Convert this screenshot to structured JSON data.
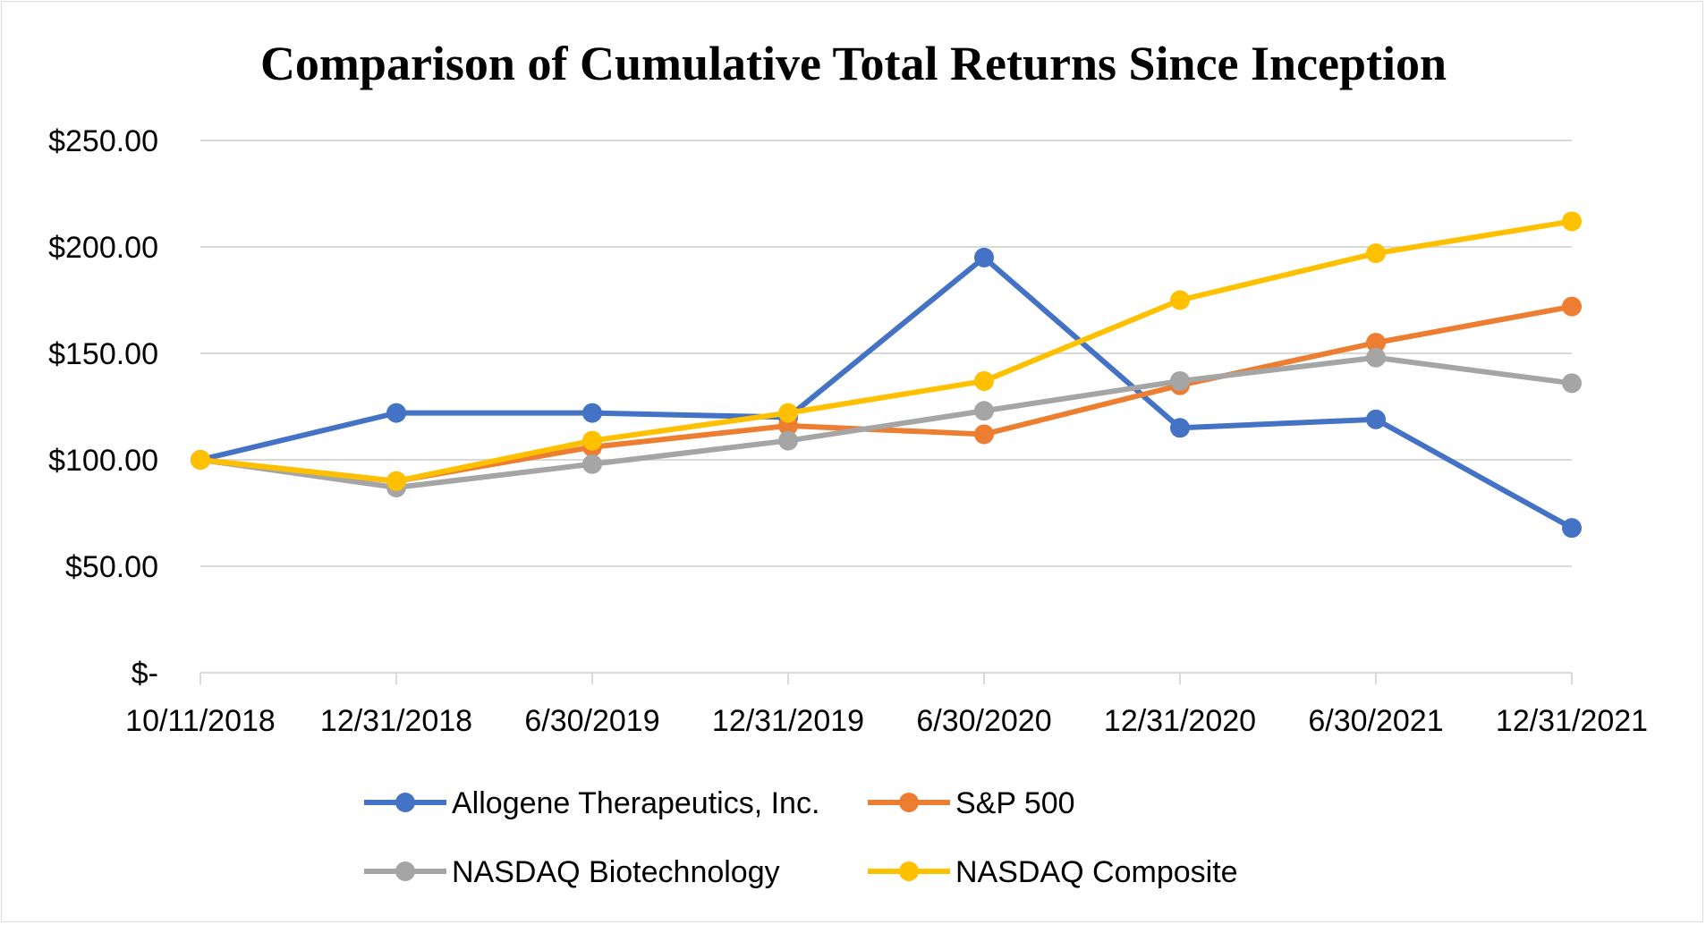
{
  "chart_data": {
    "type": "line",
    "title": "Comparison of Cumulative Total Returns Since Inception",
    "xlabel": "",
    "ylabel": "",
    "categories": [
      "10/11/2018",
      "12/31/2018",
      "6/30/2019",
      "12/31/2019",
      "6/30/2020",
      "12/31/2020",
      "6/30/2021",
      "12/31/2021"
    ],
    "ylim": [
      0,
      250
    ],
    "yticks": [
      0,
      50,
      100,
      150,
      200,
      250
    ],
    "ytick_labels": [
      "$-",
      "$50.00",
      "$100.00",
      "$150.00",
      "$200.00",
      "$250.00"
    ],
    "grid": true,
    "legend_position": "bottom",
    "series": [
      {
        "name": "Allogene Therapeutics, Inc.",
        "color": "#4472C4",
        "values": [
          100,
          122,
          122,
          120,
          195,
          115,
          119,
          68
        ]
      },
      {
        "name": "S&P 500",
        "color": "#ED7D31",
        "values": [
          100,
          90,
          106,
          116,
          112,
          135,
          155,
          172
        ]
      },
      {
        "name": "NASDAQ Biotechnology",
        "color": "#A5A5A5",
        "values": [
          100,
          87,
          98,
          109,
          123,
          137,
          148,
          136
        ]
      },
      {
        "name": "NASDAQ Composite",
        "color": "#FFC000",
        "values": [
          100,
          90,
          109,
          122,
          137,
          175,
          197,
          212
        ]
      }
    ]
  }
}
